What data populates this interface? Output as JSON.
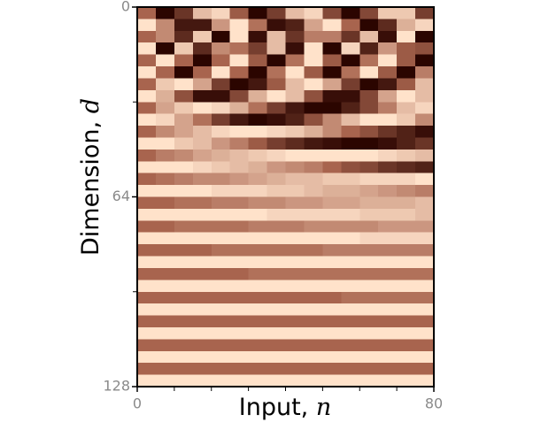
{
  "chart_data": {
    "type": "heatmap",
    "xlabel": "Input,",
    "xlabel_var": "n",
    "ylabel": "Dimension,",
    "ylabel_var": "d",
    "x": [
      0,
      5,
      10,
      15,
      20,
      25,
      30,
      35,
      40,
      45,
      50,
      55,
      60,
      65,
      70,
      75
    ],
    "xlim": [
      0,
      80
    ],
    "xticks": [
      0,
      80
    ],
    "xminor": [
      10,
      20,
      30,
      40,
      50,
      60,
      70
    ],
    "ylim": [
      0,
      128
    ],
    "yticks": [
      0,
      64,
      128
    ],
    "yminor": [
      32,
      96
    ],
    "y_inverted": true,
    "colormap": [
      "#2b0500",
      "#a8644e",
      "#ffe2ca"
    ],
    "vlim": [
      -1,
      1
    ],
    "values": [
      [
        0,
        -1,
        -0.5,
        0.7,
        0.9,
        -0.1,
        -1,
        -0.4,
        0.7,
        0.9,
        -0.3,
        -1,
        -0.3,
        0.8,
        0.8,
        -0.4
      ],
      [
        1,
        0.3,
        -0.8,
        -0.8,
        0.4,
        1,
        0.1,
        -0.9,
        -0.7,
        0.5,
        1,
        0,
        -1,
        -0.6,
        0.6,
        0.9
      ],
      [
        0,
        0.3,
        -0.6,
        0.8,
        -1,
        1,
        -0.9,
        0.7,
        -0.5,
        0.2,
        0.2,
        -0.5,
        0.7,
        -0.9,
        1,
        -1
      ],
      [
        1,
        -1,
        0.8,
        -0.6,
        0.3,
        0.1,
        -0.4,
        0.7,
        -0.9,
        1,
        -1,
        0.9,
        -0.7,
        0.4,
        -0.1,
        -0.2
      ],
      [
        0,
        1,
        0,
        -1,
        0,
        1,
        -0.1,
        -1,
        0.1,
        1,
        -0.1,
        -1,
        0.1,
        1,
        -0.1,
        -1
      ],
      [
        1,
        0,
        -1,
        0,
        1,
        0,
        -1,
        0.1,
        1,
        -0.1,
        -1,
        0.1,
        1,
        -0.1,
        -1,
        0.2
      ],
      [
        0,
        0.8,
        1,
        0.5,
        -0.4,
        -1,
        -0.8,
        -0.1,
        0.7,
        1,
        0.5,
        -0.4,
        -1,
        -0.8,
        -0.1,
        0.7
      ],
      [
        1,
        0.6,
        -0.2,
        -0.9,
        -0.9,
        -0.3,
        0.6,
        1,
        0.7,
        -0.2,
        -0.9,
        -0.9,
        -0.3,
        0.5,
        1,
        0.7
      ],
      [
        0,
        0.5,
        0.8,
        1,
        0.9,
        0.6,
        0.1,
        -0.4,
        -0.8,
        -1,
        -1,
        -0.7,
        -0.3,
        0.2,
        0.7,
        0.9
      ],
      [
        1,
        0.9,
        0.5,
        0.1,
        -0.4,
        -0.8,
        -1,
        -0.9,
        -0.7,
        -0.2,
        0.3,
        0.7,
        1,
        1,
        0.8,
        0.3
      ],
      [
        0,
        0.3,
        0.5,
        0.7,
        0.9,
        1,
        1,
        0.9,
        0.8,
        0.6,
        0.3,
        0,
        -0.2,
        -0.5,
        -0.7,
        -0.9
      ],
      [
        1,
        1,
        0.8,
        0.7,
        0.4,
        0.2,
        -0.1,
        -0.4,
        -0.6,
        -0.8,
        -0.9,
        -1,
        -1,
        -0.9,
        -0.7,
        -0.5
      ],
      [
        0,
        0.2,
        0.3,
        0.5,
        0.6,
        0.7,
        0.8,
        0.9,
        1,
        1,
        1,
        1,
        1,
        0.9,
        0.8,
        0.7
      ],
      [
        1,
        1,
        1,
        0.9,
        0.8,
        0.7,
        0.6,
        0.4,
        0.3,
        0.2,
        0,
        -0.2,
        -0.3,
        -0.5,
        -0.6,
        -0.7
      ],
      [
        0,
        0.1,
        0.2,
        0.3,
        0.3,
        0.4,
        0.5,
        0.6,
        0.7,
        0.7,
        0.8,
        0.8,
        0.9,
        0.9,
        0.9,
        1
      ],
      [
        1,
        1,
        1,
        1,
        0.9,
        0.9,
        0.9,
        0.8,
        0.8,
        0.7,
        0.6,
        0.6,
        0.5,
        0.4,
        0.3,
        0.2
      ],
      [
        0,
        0,
        0.1,
        0.1,
        0.2,
        0.2,
        0.3,
        0.3,
        0.4,
        0.4,
        0.5,
        0.5,
        0.6,
        0.6,
        0.6,
        0.7
      ],
      [
        1,
        1,
        1,
        1,
        1,
        1,
        1,
        0.9,
        0.9,
        0.9,
        0.9,
        0.9,
        0.8,
        0.8,
        0.8,
        0.7
      ],
      [
        0,
        0,
        0.1,
        0.1,
        0.1,
        0.1,
        0.2,
        0.2,
        0.2,
        0.3,
        0.3,
        0.3,
        0.3,
        0.4,
        0.4,
        0.4
      ],
      [
        1,
        1,
        1,
        1,
        1,
        1,
        1,
        1,
        1,
        1,
        1,
        1,
        0.9,
        0.9,
        0.9,
        0.9
      ],
      [
        0,
        0,
        0,
        0,
        0.1,
        0.1,
        0.1,
        0.1,
        0.1,
        0.1,
        0.2,
        0.2,
        0.2,
        0.2,
        0.2,
        0.2
      ],
      [
        1,
        1,
        1,
        1,
        1,
        1,
        1,
        1,
        1,
        1,
        1,
        1,
        1,
        1,
        1,
        1
      ],
      [
        0,
        0,
        0,
        0,
        0,
        0,
        0.1,
        0.1,
        0.1,
        0.1,
        0.1,
        0.1,
        0.1,
        0.1,
        0.1,
        0.1
      ],
      [
        1,
        1,
        1,
        1,
        1,
        1,
        1,
        1,
        1,
        1,
        1,
        1,
        1,
        1,
        1,
        1
      ],
      [
        0,
        0,
        0,
        0,
        0,
        0,
        0,
        0,
        0,
        0,
        0,
        0.1,
        0.1,
        0.1,
        0.1,
        0.1
      ],
      [
        1,
        1,
        1,
        1,
        1,
        1,
        1,
        1,
        1,
        1,
        1,
        1,
        1,
        1,
        1,
        1
      ],
      [
        0,
        0,
        0,
        0,
        0,
        0,
        0,
        0,
        0,
        0,
        0,
        0,
        0,
        0,
        0,
        0
      ],
      [
        1,
        1,
        1,
        1,
        1,
        1,
        1,
        1,
        1,
        1,
        1,
        1,
        1,
        1,
        1,
        1
      ],
      [
        0,
        0,
        0,
        0,
        0,
        0,
        0,
        0,
        0,
        0,
        0,
        0,
        0,
        0,
        0,
        0
      ],
      [
        1,
        1,
        1,
        1,
        1,
        1,
        1,
        1,
        1,
        1,
        1,
        1,
        1,
        1,
        1,
        1
      ],
      [
        0,
        0,
        0,
        0,
        0,
        0,
        0,
        0,
        0,
        0,
        0,
        0,
        0,
        0,
        0,
        0
      ],
      [
        1,
        1,
        1,
        1,
        1,
        1,
        1,
        1,
        1,
        1,
        1,
        1,
        1,
        1,
        1,
        1
      ]
    ]
  }
}
